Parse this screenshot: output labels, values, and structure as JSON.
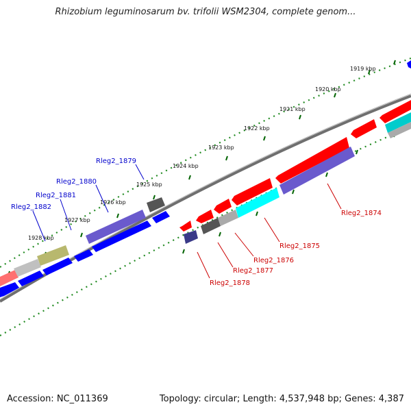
{
  "header": {
    "title": "Rhizobium leguminosarum bv. trifolii WSM2304, complete genom..."
  },
  "footer": {
    "accession": "Accession: NC_011369",
    "stats": "Topology: circular; Length: 4,537,948 bp; Genes: 4,387"
  },
  "scale": {
    "ticks": [
      {
        "label": "1919 kbp"
      },
      {
        "label": "1920 kbp"
      },
      {
        "label": "1921 kbp"
      },
      {
        "label": "1922 kbp"
      },
      {
        "label": "1923 kbp"
      },
      {
        "label": "1924 kbp"
      },
      {
        "label": "1925 kbp"
      },
      {
        "label": "1926 kbp"
      },
      {
        "label": "1927 kbp"
      },
      {
        "label": "1928 kbp"
      }
    ]
  },
  "genes": {
    "upper_labels": [
      "Rleg2_1879",
      "Rleg2_1880",
      "Rleg2_1881",
      "Rleg2_1882"
    ],
    "lower_labels": [
      "Rleg2_1874",
      "Rleg2_1875",
      "Rleg2_1876",
      "Rleg2_1877",
      "Rleg2_1878"
    ]
  },
  "colors": {
    "backbone": "#808080",
    "tick": "#228b22",
    "forward_strand": "#0000ff",
    "reverse_strand": "#ff0000",
    "label_upper": "#0000cc",
    "label_lower": "#cc0000"
  }
}
